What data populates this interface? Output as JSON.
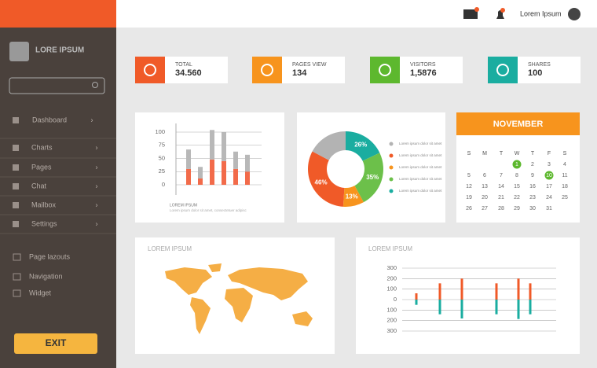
{
  "sidebar": {
    "brand": "LORE IPSUM",
    "menu": [
      "Dashboard",
      "Charts",
      "Pages",
      "Chat",
      "Mailbox",
      "Settings"
    ],
    "links": [
      "Page lazouts",
      "Navigation",
      "Widget"
    ],
    "exit": "EXIT"
  },
  "topbar": {
    "user": "Lorem Ipsum"
  },
  "stats": [
    {
      "label": "TOTAL",
      "value": "34.560",
      "color": "#f05a28"
    },
    {
      "label": "PAGES VIEW",
      "value": "134",
      "color": "#f7941d"
    },
    {
      "label": "VISITORS",
      "value": "1,5876",
      "color": "#5db82e"
    },
    {
      "label": "SHARES",
      "value": "100",
      "color": "#1aada0"
    }
  ],
  "bar_chart": {
    "type": "bar",
    "stacked": true,
    "categories": [
      null,
      null,
      null,
      null,
      null,
      null
    ],
    "series": [
      {
        "color": "#f26b4a",
        "values": [
          30,
          12,
          48,
          45,
          30,
          25
        ]
      },
      {
        "color": "#b8b8b8",
        "values": [
          37,
          22,
          56,
          55,
          33,
          32
        ]
      }
    ],
    "ylim": [
      -10,
      110
    ],
    "yticks": [
      0,
      25,
      50,
      75,
      100
    ],
    "grid": true,
    "caption": "LOREM IPSUM",
    "subcaption": "Lorem ipsum dolor sit amet, consectetuer adipisc"
  },
  "donut_chart": {
    "type": "pie",
    "donut": true,
    "categories": [
      "Lorem ipsum dolor sit amet",
      "Lorem ipsum dolor sit amet",
      "Lorem ipsum dolor sit amet",
      "Lorem ipsum dolor sit amet",
      "Lorem ipsum dolor sit amet"
    ],
    "values": [
      26,
      35,
      13,
      46,
      25
    ],
    "value_labels": [
      "26%",
      "35%",
      "13%",
      "46%",
      null
    ],
    "colors": [
      "#1aada0",
      "#6cc04a",
      "#f7941d",
      "#f05a28",
      "#b3b3b3"
    ]
  },
  "calendar": {
    "month": "NOVEMBER",
    "weekdays": [
      "S",
      "M",
      "T",
      "W",
      "T",
      "F",
      "S"
    ],
    "weeks": [
      [
        null,
        null,
        null,
        1,
        2,
        3,
        4
      ],
      [
        5,
        6,
        7,
        8,
        9,
        10,
        11
      ],
      [
        12,
        13,
        14,
        15,
        16,
        17,
        18
      ],
      [
        19,
        20,
        21,
        22,
        23,
        24,
        25
      ],
      [
        26,
        27,
        28,
        29,
        30,
        31,
        null
      ]
    ],
    "highlighted": [
      1,
      10
    ]
  },
  "map_card": {
    "title": "LOREM IPSUM"
  },
  "bottom_chart": {
    "type": "bar",
    "title": "LOREM IPSUM",
    "categories": [
      null,
      null,
      null,
      null,
      null,
      null
    ],
    "series": [
      {
        "color": "#f05a28",
        "values": [
          60,
          155,
          200,
          155,
          200,
          155
        ]
      },
      {
        "color": "#1aada0",
        "values": [
          -50,
          -140,
          -180,
          -140,
          -185,
          -140
        ]
      }
    ],
    "ylim": [
      -300,
      300
    ],
    "yticks": [
      300,
      200,
      100,
      0,
      {
        "value": -100,
        "label": "100"
      },
      {
        "value": -200,
        "label": "200"
      },
      {
        "value": -300,
        "label": "300"
      }
    ],
    "grid": true
  }
}
